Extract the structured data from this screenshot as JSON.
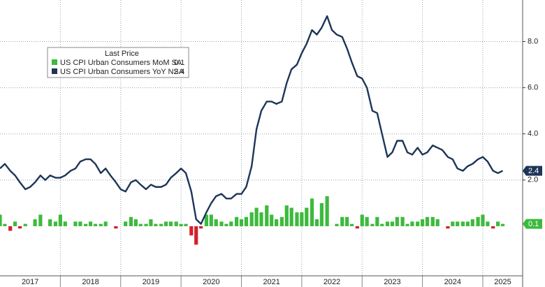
{
  "chart_data": {
    "type": "line_bar",
    "legend_title": "Last Price",
    "x": [
      2017.0,
      2017.08,
      2017.17,
      2017.25,
      2017.33,
      2017.42,
      2017.5,
      2017.58,
      2017.67,
      2017.75,
      2017.83,
      2017.92,
      2018.0,
      2018.08,
      2018.17,
      2018.25,
      2018.33,
      2018.42,
      2018.5,
      2018.58,
      2018.67,
      2018.75,
      2018.83,
      2018.92,
      2019.0,
      2019.08,
      2019.17,
      2019.25,
      2019.33,
      2019.42,
      2019.5,
      2019.58,
      2019.67,
      2019.75,
      2019.83,
      2019.92,
      2020.0,
      2020.08,
      2020.17,
      2020.25,
      2020.33,
      2020.42,
      2020.5,
      2020.58,
      2020.67,
      2020.75,
      2020.83,
      2020.92,
      2021.0,
      2021.08,
      2021.17,
      2021.25,
      2021.33,
      2021.42,
      2021.5,
      2021.58,
      2021.67,
      2021.75,
      2021.83,
      2021.92,
      2022.0,
      2022.08,
      2022.17,
      2022.25,
      2022.33,
      2022.42,
      2022.5,
      2022.58,
      2022.67,
      2022.75,
      2022.83,
      2022.92,
      2023.0,
      2023.08,
      2023.17,
      2023.25,
      2023.33,
      2023.42,
      2023.5,
      2023.58,
      2023.67,
      2023.75,
      2023.83,
      2023.92,
      2024.0,
      2024.08,
      2024.17,
      2024.25,
      2024.33,
      2024.42,
      2024.5,
      2024.58,
      2024.67,
      2024.75,
      2024.83,
      2024.92,
      2025.0,
      2025.08,
      2025.17,
      2025.25,
      2025.33
    ],
    "series": [
      {
        "name": "US CPI Urban Consumers MoM SA",
        "kind": "bar",
        "color": "#3dba3d",
        "negative_color": "#d3202b",
        "values": [
          0.5,
          0.1,
          -0.2,
          0.2,
          -0.1,
          0.1,
          0.0,
          0.3,
          0.5,
          0.0,
          0.3,
          0.2,
          0.5,
          0.2,
          0.0,
          0.2,
          0.2,
          0.1,
          0.2,
          0.1,
          0.1,
          0.2,
          0.0,
          -0.1,
          0.0,
          0.2,
          0.4,
          0.3,
          0.1,
          0.1,
          0.3,
          0.1,
          0.1,
          0.2,
          0.2,
          0.2,
          0.1,
          0.1,
          -0.4,
          -0.8,
          -0.1,
          0.5,
          0.5,
          0.3,
          0.2,
          0.1,
          0.2,
          0.4,
          0.3,
          0.4,
          0.6,
          0.8,
          0.6,
          0.9,
          0.5,
          0.3,
          0.4,
          0.9,
          0.8,
          0.6,
          0.6,
          0.8,
          1.2,
          0.3,
          1.0,
          1.3,
          0.0,
          0.1,
          0.4,
          0.4,
          0.1,
          -0.1,
          0.5,
          0.4,
          0.1,
          0.4,
          0.1,
          0.2,
          0.2,
          0.4,
          0.4,
          0.1,
          0.2,
          0.2,
          0.3,
          0.4,
          0.4,
          0.3,
          0.0,
          -0.1,
          0.2,
          0.2,
          0.2,
          0.2,
          0.3,
          0.4,
          0.5,
          0.2,
          -0.1,
          0.2,
          0.1
        ]
      },
      {
        "name": "US CPI Urban Consumers YoY NSA",
        "kind": "line",
        "color": "#1d3557",
        "values": [
          2.5,
          2.7,
          2.4,
          2.2,
          1.9,
          1.6,
          1.7,
          1.9,
          2.2,
          2.0,
          2.2,
          2.1,
          2.1,
          2.2,
          2.4,
          2.5,
          2.8,
          2.9,
          2.9,
          2.7,
          2.3,
          2.5,
          2.2,
          1.9,
          1.6,
          1.5,
          1.9,
          2.0,
          1.8,
          1.6,
          1.8,
          1.7,
          1.7,
          1.8,
          2.1,
          2.3,
          2.5,
          2.3,
          1.5,
          0.3,
          0.1,
          0.6,
          1.0,
          1.3,
          1.4,
          1.2,
          1.2,
          1.4,
          1.4,
          1.7,
          2.6,
          4.2,
          5.0,
          5.4,
          5.4,
          5.3,
          5.4,
          6.2,
          6.8,
          7.0,
          7.5,
          7.9,
          8.5,
          8.3,
          8.6,
          9.1,
          8.5,
          8.3,
          8.2,
          7.7,
          7.1,
          6.5,
          6.4,
          6.0,
          5.0,
          4.9,
          4.0,
          3.0,
          3.2,
          3.7,
          3.7,
          3.2,
          3.1,
          3.4,
          3.1,
          3.2,
          3.5,
          3.4,
          3.3,
          3.0,
          2.9,
          2.5,
          2.4,
          2.6,
          2.7,
          2.9,
          3.0,
          2.8,
          2.4,
          2.3,
          2.4
        ]
      }
    ],
    "xlim": [
      2017,
      2025.66
    ],
    "xticks": [
      {
        "value": 2017,
        "label": "2017"
      },
      {
        "value": 2018,
        "label": "2018"
      },
      {
        "value": 2019,
        "label": "2019"
      },
      {
        "value": 2020,
        "label": "2020"
      },
      {
        "value": 2021,
        "label": "2021"
      },
      {
        "value": 2022,
        "label": "2022"
      },
      {
        "value": 2023,
        "label": "2023"
      },
      {
        "value": 2024,
        "label": "2024"
      },
      {
        "value": 2025,
        "label": "2025"
      }
    ],
    "ylim": [
      -2.15,
      9.8
    ],
    "yticks": [
      {
        "value": 2,
        "label": "2.0"
      },
      {
        "value": 4,
        "label": "4.0"
      },
      {
        "value": 6,
        "label": "6.0"
      },
      {
        "value": 8,
        "label": "8.0"
      }
    ],
    "grid": true
  }
}
